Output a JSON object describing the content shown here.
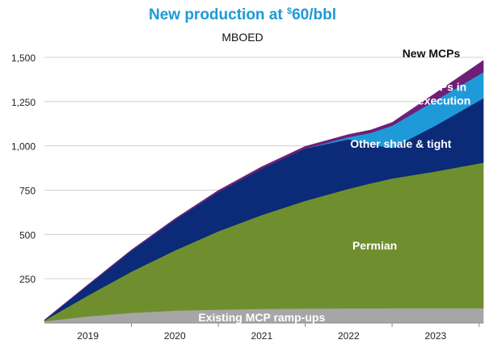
{
  "title": {
    "prefix": "New production at ",
    "currency_symbol": "$",
    "suffix": "60/bbl"
  },
  "subtitle": "MBOED",
  "chart_data": {
    "type": "area",
    "stacked": true,
    "xlim": [
      2018.5,
      2023.55
    ],
    "ylim": [
      0,
      1550
    ],
    "yticks": [
      250,
      500,
      750,
      1000,
      1250,
      1500
    ],
    "ytick_labels": [
      "250",
      "500",
      "750",
      "1,000",
      "1,250",
      "1,500"
    ],
    "xtick_labels": [
      "2019",
      "2020",
      "2021",
      "2022",
      "2023"
    ],
    "xtick_positions": [
      2019,
      2020,
      2021,
      2022,
      2023
    ],
    "grid": "horizontal",
    "x": [
      2018.5,
      2019.0,
      2019.5,
      2020.0,
      2020.5,
      2021.0,
      2021.5,
      2022.0,
      2022.25,
      2022.5,
      2023.0,
      2023.55
    ],
    "series": [
      {
        "name": "Existing MCP ramp-ups",
        "color": "#a6a6a6",
        "values": [
          10,
          38,
          58,
          70,
          76,
          80,
          82,
          83,
          83,
          84,
          84,
          84
        ]
      },
      {
        "name": "Permian",
        "color": "#6f8f2f",
        "values": [
          5,
          118,
          232,
          340,
          442,
          530,
          608,
          675,
          705,
          732,
          772,
          822
        ]
      },
      {
        "name": "Other shale & tight",
        "color": "#0b2a78",
        "values": [
          2,
          58,
          118,
          172,
          222,
          262,
          295,
          280,
          220,
          172,
          259,
          363
        ]
      },
      {
        "name": "MCPs in execution",
        "color": "#1f9ad8",
        "values": [
          0,
          0,
          0,
          0,
          0,
          0,
          0,
          12,
          65,
          126,
          143,
          148
        ]
      },
      {
        "name": "New MCPs",
        "color": "#6e1f78",
        "values": [
          0,
          2,
          4,
          6,
          8,
          10,
          12,
          14,
          16,
          18,
          40,
          65
        ]
      }
    ],
    "series_label_colors": [
      "#ffffff",
      "#ffffff",
      "#ffffff",
      "#ffffff",
      "#111111"
    ]
  }
}
